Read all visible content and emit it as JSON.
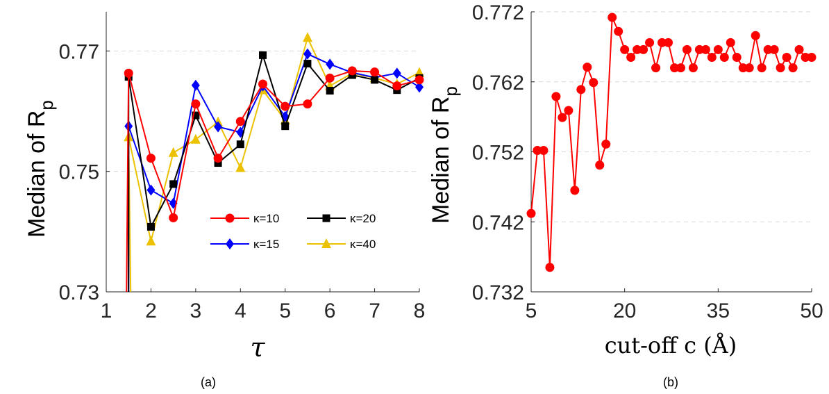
{
  "chart_data": [
    {
      "type": "line",
      "caption": "(a)",
      "xlabel": "τ",
      "ylabel": "Median of R",
      "ylabel_sub": "p",
      "xlim": [
        1,
        8
      ],
      "ylim": [
        0.73,
        0.7765
      ],
      "xticks": [
        "1",
        "2",
        "3",
        "4",
        "5",
        "6",
        "7",
        "8"
      ],
      "yticks": [
        "0.73",
        "0.75",
        "0.77"
      ],
      "grid": "horizontal dashed",
      "legend_position": "lower-right",
      "x": [
        1.5,
        2,
        2.5,
        3,
        3.5,
        4,
        4.5,
        5,
        5.5,
        6,
        6.5,
        7,
        7.5,
        8
      ],
      "series": [
        {
          "name": "κ=10",
          "color": "#ff0000",
          "marker": "circle",
          "values": [
            0.7663,
            0.7522,
            0.7423,
            0.7612,
            0.7522,
            0.7583,
            0.7645,
            0.7608,
            0.7612,
            0.7655,
            0.7667,
            0.7665,
            0.7642,
            0.7652
          ]
        },
        {
          "name": "κ=15",
          "color": "#0000ff",
          "marker": "diamond",
          "values": [
            0.7575,
            0.7469,
            0.7447,
            0.7643,
            0.7574,
            0.7565,
            0.7642,
            0.7591,
            0.7695,
            0.7678,
            0.7664,
            0.7656,
            0.7663,
            0.764
          ]
        },
        {
          "name": "κ=20",
          "color": "#000000",
          "marker": "square",
          "values": [
            0.7657,
            0.7408,
            0.7479,
            0.7593,
            0.7514,
            0.7545,
            0.7693,
            0.7575,
            0.7679,
            0.7634,
            0.766,
            0.7652,
            0.7635,
            0.7655
          ]
        },
        {
          "name": "κ=40",
          "color": "#ecc200",
          "marker": "triangle",
          "values": [
            0.7557,
            0.7384,
            0.7531,
            0.7553,
            0.7582,
            0.7506,
            0.7635,
            0.7585,
            0.7722,
            0.7642,
            0.7663,
            0.7655,
            0.7645,
            0.7664
          ]
        }
      ]
    },
    {
      "type": "line",
      "caption": "(b)",
      "xlabel": "cut-off c (Å)",
      "ylabel": "Median of R",
      "ylabel_sub": "p",
      "xlim": [
        5,
        50
      ],
      "ylim": [
        0.732,
        0.772
      ],
      "xticks": [
        "5",
        "20",
        "35",
        "50"
      ],
      "yticks": [
        "0.732",
        "0.742",
        "0.752",
        "0.762",
        "0.772"
      ],
      "grid": "horizontal dashed",
      "color": "#ff0000",
      "marker": "circle",
      "x": [
        5,
        6,
        7,
        8,
        9,
        10,
        11,
        12,
        13,
        14,
        15,
        16,
        17,
        18,
        19,
        20,
        21,
        22,
        23,
        24,
        25,
        26,
        27,
        28,
        29,
        30,
        31,
        32,
        33,
        34,
        35,
        36,
        37,
        38,
        39,
        40,
        41,
        42,
        43,
        44,
        45,
        46,
        47,
        48,
        49,
        50
      ],
      "y": [
        0.7432,
        0.7522,
        0.7522,
        0.7355,
        0.7599,
        0.7569,
        0.7579,
        0.7465,
        0.7609,
        0.7641,
        0.7619,
        0.7501,
        0.7531,
        0.7712,
        0.7692,
        0.7666,
        0.7655,
        0.7666,
        0.7666,
        0.7676,
        0.764,
        0.7676,
        0.7676,
        0.764,
        0.764,
        0.7666,
        0.764,
        0.7666,
        0.7666,
        0.7655,
        0.7666,
        0.7655,
        0.7676,
        0.7655,
        0.764,
        0.764,
        0.7686,
        0.764,
        0.7666,
        0.7666,
        0.764,
        0.7655,
        0.764,
        0.7666,
        0.7655,
        0.7655
      ]
    }
  ]
}
